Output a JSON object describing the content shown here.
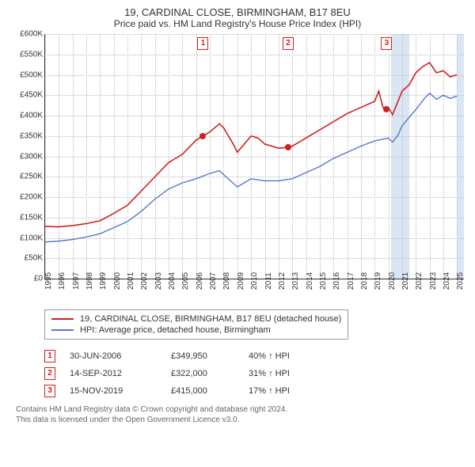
{
  "title": "19, CARDINAL CLOSE, BIRMINGHAM, B17 8EU",
  "subtitle": "Price paid vs. HM Land Registry's House Price Index (HPI)",
  "chart": {
    "type": "line",
    "ylim": [
      0,
      600000
    ],
    "ytick_step": 50000,
    "y_ticks": [
      "£0",
      "£50K",
      "£100K",
      "£150K",
      "£200K",
      "£250K",
      "£300K",
      "£350K",
      "£400K",
      "£450K",
      "£500K",
      "£550K",
      "£600K"
    ],
    "x_years": [
      1995,
      1996,
      1997,
      1998,
      1999,
      2000,
      2001,
      2002,
      2003,
      2004,
      2005,
      2006,
      2007,
      2008,
      2009,
      2010,
      2011,
      2012,
      2013,
      2014,
      2015,
      2016,
      2017,
      2018,
      2019,
      2020,
      2021,
      2022,
      2023,
      2024,
      2025
    ],
    "x_min": 1995,
    "x_max": 2025.5,
    "background_color": "#ffffff",
    "grid_color": "#bbbbbb",
    "series": {
      "price_paid": {
        "label": "19, CARDINAL CLOSE, BIRMINGHAM, B17 8EU (detached house)",
        "color": "#d02020",
        "width": 1.6,
        "points": [
          [
            1995,
            128000
          ],
          [
            1996,
            127000
          ],
          [
            1997,
            130000
          ],
          [
            1998,
            135000
          ],
          [
            1999,
            142000
          ],
          [
            2000,
            160000
          ],
          [
            2001,
            180000
          ],
          [
            2002,
            215000
          ],
          [
            2003,
            250000
          ],
          [
            2004,
            285000
          ],
          [
            2005,
            305000
          ],
          [
            2006,
            340000
          ],
          [
            2006.5,
            349950
          ],
          [
            2007,
            360000
          ],
          [
            2007.7,
            380000
          ],
          [
            2008,
            370000
          ],
          [
            2008.7,
            330000
          ],
          [
            2009,
            310000
          ],
          [
            2009.5,
            330000
          ],
          [
            2010,
            350000
          ],
          [
            2010.5,
            345000
          ],
          [
            2011,
            330000
          ],
          [
            2012,
            320000
          ],
          [
            2012.7,
            322000
          ],
          [
            2013,
            325000
          ],
          [
            2014,
            345000
          ],
          [
            2015,
            365000
          ],
          [
            2016,
            385000
          ],
          [
            2017,
            405000
          ],
          [
            2018,
            420000
          ],
          [
            2019,
            435000
          ],
          [
            2019.3,
            460000
          ],
          [
            2019.6,
            420000
          ],
          [
            2019.87,
            415000
          ],
          [
            2020,
            420000
          ],
          [
            2020.3,
            402000
          ],
          [
            2020.7,
            435000
          ],
          [
            2021,
            460000
          ],
          [
            2021.5,
            475000
          ],
          [
            2022,
            505000
          ],
          [
            2022.5,
            520000
          ],
          [
            2023,
            530000
          ],
          [
            2023.5,
            505000
          ],
          [
            2024,
            510000
          ],
          [
            2024.5,
            495000
          ],
          [
            2025,
            500000
          ]
        ]
      },
      "hpi": {
        "label": "HPI: Average price, detached house, Birmingham",
        "color": "#5577cc",
        "width": 1.4,
        "points": [
          [
            1995,
            90000
          ],
          [
            1996,
            92000
          ],
          [
            1997,
            96000
          ],
          [
            1998,
            102000
          ],
          [
            1999,
            110000
          ],
          [
            2000,
            125000
          ],
          [
            2001,
            140000
          ],
          [
            2002,
            165000
          ],
          [
            2003,
            195000
          ],
          [
            2004,
            220000
          ],
          [
            2005,
            235000
          ],
          [
            2006,
            245000
          ],
          [
            2007,
            258000
          ],
          [
            2007.7,
            265000
          ],
          [
            2008,
            255000
          ],
          [
            2009,
            225000
          ],
          [
            2009.5,
            235000
          ],
          [
            2010,
            245000
          ],
          [
            2011,
            240000
          ],
          [
            2012,
            240000
          ],
          [
            2013,
            245000
          ],
          [
            2014,
            260000
          ],
          [
            2015,
            275000
          ],
          [
            2016,
            295000
          ],
          [
            2017,
            310000
          ],
          [
            2018,
            325000
          ],
          [
            2019,
            338000
          ],
          [
            2020,
            345000
          ],
          [
            2020.3,
            335000
          ],
          [
            2020.7,
            352000
          ],
          [
            2021,
            375000
          ],
          [
            2022,
            415000
          ],
          [
            2022.7,
            445000
          ],
          [
            2023,
            455000
          ],
          [
            2023.5,
            440000
          ],
          [
            2024,
            450000
          ],
          [
            2024.5,
            442000
          ],
          [
            2025,
            448000
          ]
        ]
      }
    },
    "shaded_bands": [
      {
        "from": 2020.17,
        "to": 2021.5,
        "color": "rgba(173,201,226,0.45)"
      },
      {
        "from": 2025.0,
        "to": 2025.5,
        "color": "rgba(173,201,226,0.45)"
      }
    ],
    "sale_markers": [
      {
        "n": "1",
        "x": 2006.5,
        "y": 349950,
        "box_x": 2006.5
      },
      {
        "n": "2",
        "x": 2012.7,
        "y": 322000,
        "box_x": 2012.7
      },
      {
        "n": "3",
        "x": 2019.87,
        "y": 415000,
        "box_x": 2019.87
      }
    ]
  },
  "legend": [
    {
      "color": "#d02020",
      "label": "19, CARDINAL CLOSE, BIRMINGHAM, B17 8EU (detached house)"
    },
    {
      "color": "#5577cc",
      "label": "HPI: Average price, detached house, Birmingham"
    }
  ],
  "sales": [
    {
      "n": "1",
      "date": "30-JUN-2006",
      "price": "£349,950",
      "diff": "40% ↑ HPI"
    },
    {
      "n": "2",
      "date": "14-SEP-2012",
      "price": "£322,000",
      "diff": "31% ↑ HPI"
    },
    {
      "n": "3",
      "date": "15-NOV-2019",
      "price": "£415,000",
      "diff": "17% ↑ HPI"
    }
  ],
  "footer_line1": "Contains HM Land Registry data © Crown copyright and database right 2024.",
  "footer_line2": "This data is licensed under the Open Government Licence v3.0."
}
